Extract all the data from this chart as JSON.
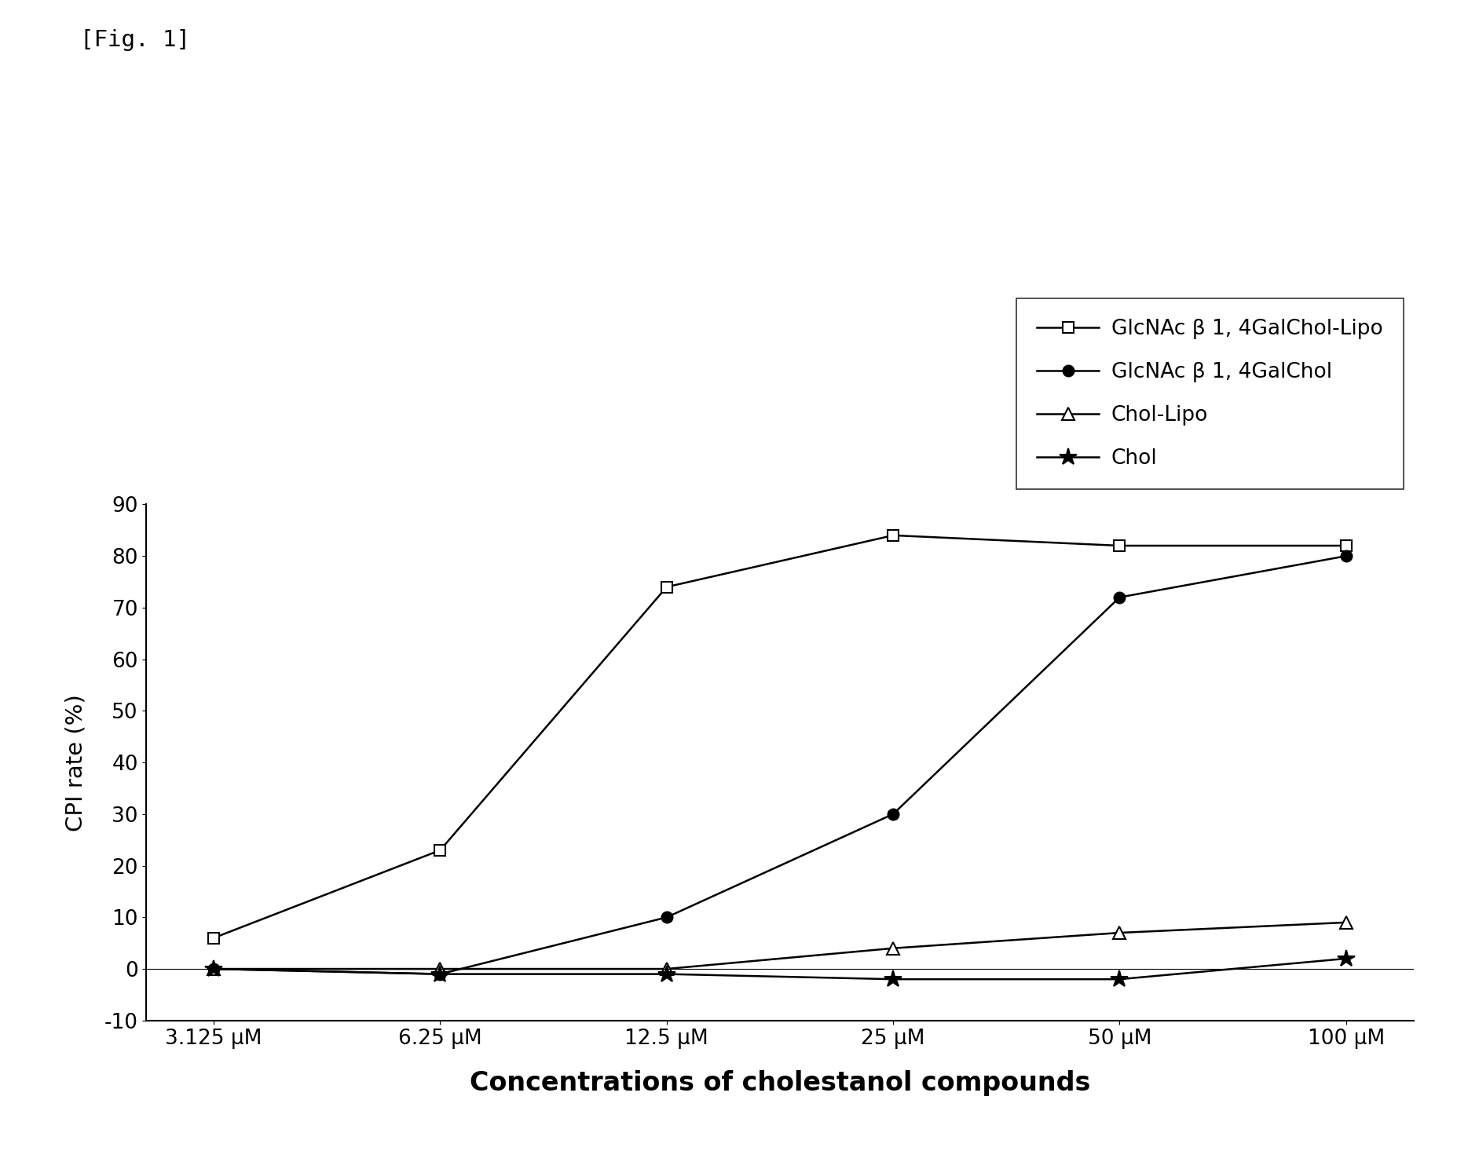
{
  "title": "[Fig. 1]",
  "xlabel": "Concentrations of cholestanol compounds",
  "ylabel": "CPI rate (%)",
  "x_labels": [
    "3.125 μM",
    "6.25 μM",
    "12.5 μM",
    "25 μM",
    "50 μM",
    "100 μM"
  ],
  "x_values": [
    0,
    1,
    2,
    3,
    4,
    5
  ],
  "ylim": [
    -10,
    90
  ],
  "yticks": [
    -10,
    0,
    10,
    20,
    30,
    40,
    50,
    60,
    70,
    80,
    90
  ],
  "series": [
    {
      "label": "GlcNAc β 1, 4GalChol-Lipo",
      "y": [
        6,
        23,
        74,
        84,
        82,
        82
      ],
      "color": "#000000",
      "marker": "s",
      "marker_fill": "white",
      "linestyle": "-",
      "linewidth": 1.8
    },
    {
      "label": "GlcNAc β 1, 4GalChol",
      "y": [
        0,
        -1,
        10,
        30,
        72,
        80
      ],
      "color": "#000000",
      "marker": "o",
      "marker_fill": "black",
      "linestyle": "-",
      "linewidth": 1.8
    },
    {
      "label": "Chol-Lipo",
      "y": [
        0,
        0,
        0,
        4,
        7,
        9
      ],
      "color": "#000000",
      "marker": "^",
      "marker_fill": "white",
      "linestyle": "-",
      "linewidth": 1.8
    },
    {
      "label": "Chol",
      "y": [
        0,
        -1,
        -1,
        -2,
        -2,
        2
      ],
      "color": "#000000",
      "marker": "*",
      "marker_fill": "black",
      "linestyle": "-",
      "linewidth": 1.8
    }
  ],
  "background_color": "#ffffff"
}
